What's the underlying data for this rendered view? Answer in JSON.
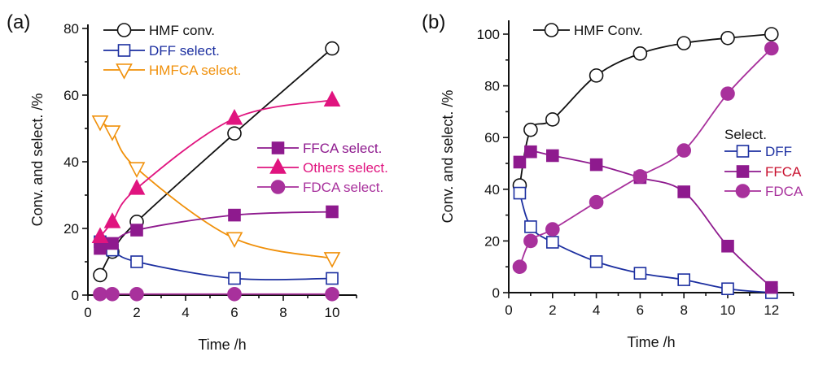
{
  "chart_data": [
    {
      "type": "line",
      "panel_label": "(a)",
      "xlabel": "Time /h",
      "ylabel": "Conv. and select. /%",
      "xlim": [
        0,
        11
      ],
      "ylim": [
        0,
        80
      ],
      "xticks": [
        "0",
        "2",
        "4",
        "6",
        "8",
        "10"
      ],
      "yticks": [
        "0",
        "20",
        "40",
        "60",
        "80"
      ],
      "x": [
        0.5,
        1,
        2,
        6,
        10
      ],
      "series": [
        {
          "name": "HMF conv.",
          "color": "#111111",
          "marker": "open-circle",
          "values": [
            6,
            13,
            22,
            48.5,
            74
          ]
        },
        {
          "name": "DFF select.",
          "color": "#1c2fa0",
          "marker": "open-square",
          "values": [
            16,
            13.5,
            10,
            5,
            5
          ]
        },
        {
          "name": "HMFCA select.",
          "color": "#f0900a",
          "marker": "open-triangle-down",
          "values": [
            52,
            49,
            38,
            17,
            11
          ]
        },
        {
          "name": "FFCA select.",
          "color": "#8e1a8e",
          "marker": "filled-square",
          "values": [
            14,
            15.5,
            19.5,
            24,
            25
          ]
        },
        {
          "name": "Others select.",
          "color": "#e0147f",
          "marker": "filled-triangle-up",
          "values": [
            17.5,
            22,
            32,
            53,
            58.5
          ]
        },
        {
          "name": "FDCA select.",
          "color": "#a8319c",
          "marker": "filled-circle",
          "values": [
            0.3,
            0.3,
            0.3,
            0.3,
            0.3
          ]
        }
      ]
    },
    {
      "type": "line",
      "panel_label": "(b)",
      "xlabel": "Time /h",
      "ylabel": "Conv. and select. /%",
      "legend_title": "Select.",
      "xlim": [
        0,
        13
      ],
      "ylim": [
        0,
        100
      ],
      "xticks": [
        "0",
        "2",
        "4",
        "6",
        "8",
        "10",
        "12"
      ],
      "yticks": [
        "0",
        "20",
        "40",
        "60",
        "80",
        "100"
      ],
      "x": [
        0.5,
        1,
        2,
        4,
        6,
        8,
        10,
        12
      ],
      "series": [
        {
          "name": "HMF Conv.",
          "color": "#111111",
          "marker": "open-circle",
          "values": [
            41.5,
            63,
            67,
            84,
            92.5,
            96.5,
            98.5,
            100
          ]
        },
        {
          "name": "DFF",
          "color": "#1c2fa0",
          "marker": "open-square",
          "values": [
            38.5,
            25.5,
            19.5,
            12,
            7.5,
            5,
            1.5,
            0
          ]
        },
        {
          "name": "FFCA",
          "color": "#8e1a8e",
          "label_color": "#c8102e",
          "marker": "filled-square",
          "values": [
            50.5,
            54.5,
            53,
            49.5,
            44.5,
            39,
            18,
            2
          ]
        },
        {
          "name": "FDCA",
          "color": "#a8319c",
          "marker": "filled-circle",
          "values": [
            10,
            20,
            24.5,
            35,
            45,
            55,
            77,
            94.5
          ]
        }
      ]
    }
  ]
}
